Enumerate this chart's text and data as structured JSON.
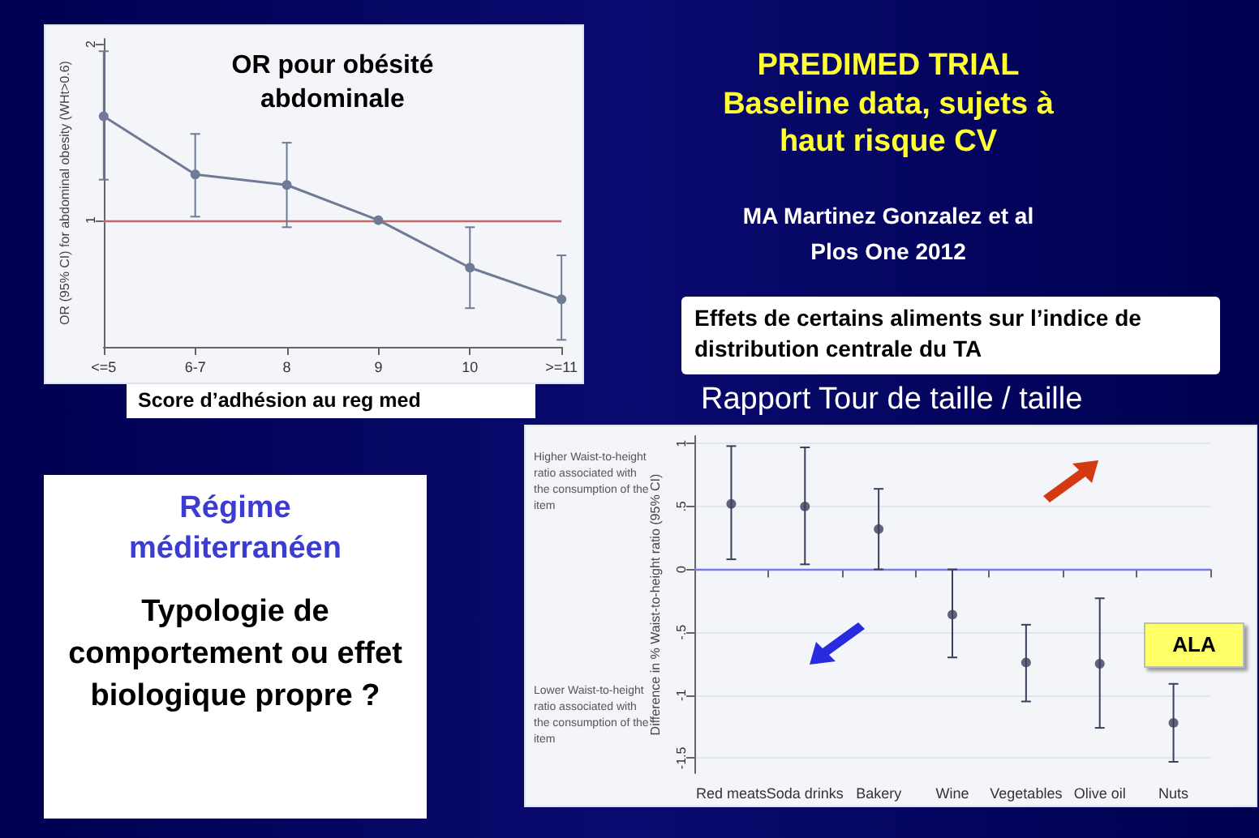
{
  "chart_data": [
    {
      "type": "line",
      "title": "OR pour obésité abdominale",
      "xlabel": "Score d’adhésion au reg med",
      "ylabel": "OR (95% CI) for abdominal obesity (WHt>0.6)",
      "categories": [
        "<=5",
        "6-7",
        "8",
        "9",
        "10",
        ">=11"
      ],
      "series": [
        {
          "color": "#6f7a96",
          "values": [
            1.59,
            1.26,
            1.2,
            1.0,
            0.73,
            0.55
          ],
          "errors": [
            [
              1.23,
              1.96
            ],
            [
              1.02,
              1.49
            ],
            [
              0.96,
              1.44
            ],
            null,
            [
              0.5,
              0.96
            ],
            [
              0.32,
              0.8
            ]
          ]
        }
      ],
      "ylim": [
        0.28,
        2.03
      ],
      "yticks": [
        1,
        2
      ],
      "marker": "circle",
      "grid": false,
      "ref_lines": [
        {
          "axis": "y",
          "value": 1,
          "color": "#c06a6a"
        }
      ]
    },
    {
      "type": "other",
      "title": "PREDIMED TRIAL",
      "subtitle": "Baseline data, sujets à haut risque CV",
      "annotations": [
        "MA Martinez Gonzalez et al Plos One 2012"
      ]
    },
    {
      "type": "scatter",
      "title": "Effets de certains aliments sur l’indice de distribution centrale du TA",
      "subtitle": "Rapport Tour de taille / taille",
      "ylabel": "Difference in % Waist-to-height ratio (95% CI)",
      "categories": [
        "Red meats",
        "Soda drinks",
        "Bakery",
        "Wine",
        "Vegetables",
        "Olive oil",
        "Nuts"
      ],
      "series": [
        {
          "color": "#3a3f5c",
          "values": [
            0.52,
            0.5,
            0.32,
            -0.36,
            -0.74,
            -0.75,
            -1.22
          ],
          "errors": [
            [
              0.08,
              0.98
            ],
            [
              0.04,
              0.97
            ],
            [
              0.0,
              0.64
            ],
            [
              -0.7,
              0.0
            ],
            [
              -1.05,
              -0.44
            ],
            [
              -1.26,
              -0.23
            ],
            [
              -1.53,
              -0.91
            ]
          ]
        }
      ],
      "ylim": [
        -1.62,
        1.06
      ],
      "yticks": [
        {
          "value": -1.5,
          "label": "-1.5"
        },
        -1,
        {
          "value": -0.5,
          "label": "-.5"
        },
        0,
        {
          "value": 0.5,
          "label": ".5"
        },
        1
      ],
      "marker": "circle",
      "grid": "y",
      "ref_lines": [
        {
          "axis": "y",
          "value": 0,
          "color": "#7b7be6"
        }
      ],
      "annotations": [
        "Higher Waist-to-height ratio associated with the consumption of the item",
        "Lower Waist-to-height ratio associated with the consumption of the item",
        "ALA"
      ]
    },
    {
      "type": "other",
      "title": "Régime méditerranéen",
      "annotations": [
        "Typologie de comportement ou effet biologique propre ?"
      ]
    }
  ]
}
